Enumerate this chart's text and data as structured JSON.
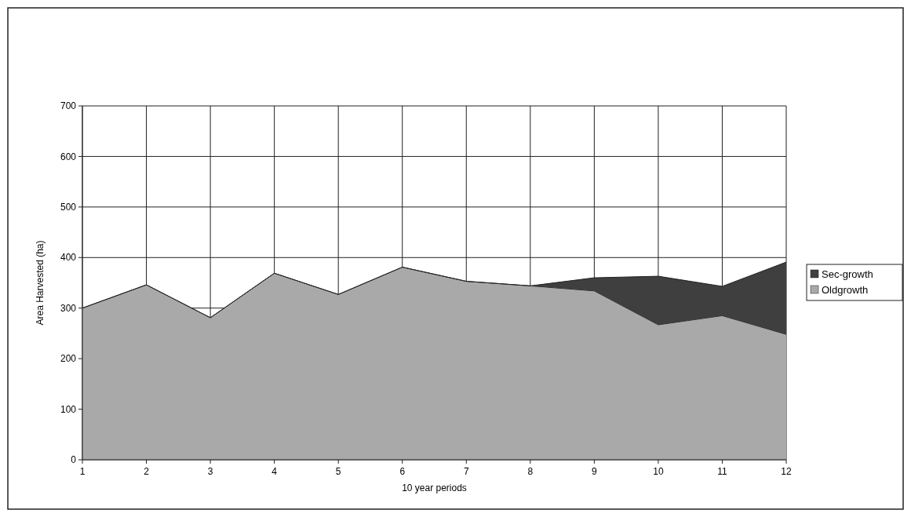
{
  "chart_data": {
    "type": "area",
    "stacked": true,
    "xlabel": "10 year periods",
    "ylabel": "Area Harvested (ha)",
    "categories": [
      "1",
      "2",
      "3",
      "4",
      "5",
      "6",
      "7",
      "8",
      "9",
      "10",
      "11",
      "12"
    ],
    "series": [
      {
        "name": "Oldgrowth",
        "color": "#a9a9a9",
        "values": [
          300,
          346,
          281,
          369,
          327,
          381,
          353,
          344,
          334,
          267,
          285,
          248
        ]
      },
      {
        "name": "Sec-growth",
        "color": "#3f3f3f",
        "values": [
          0,
          0,
          0,
          0,
          0,
          0,
          0,
          0,
          26,
          96,
          58,
          143
        ]
      }
    ],
    "ylim": [
      0,
      700
    ],
    "yticks": [
      0,
      100,
      200,
      300,
      400,
      500,
      600,
      700
    ],
    "grid": true,
    "legend": "right"
  }
}
